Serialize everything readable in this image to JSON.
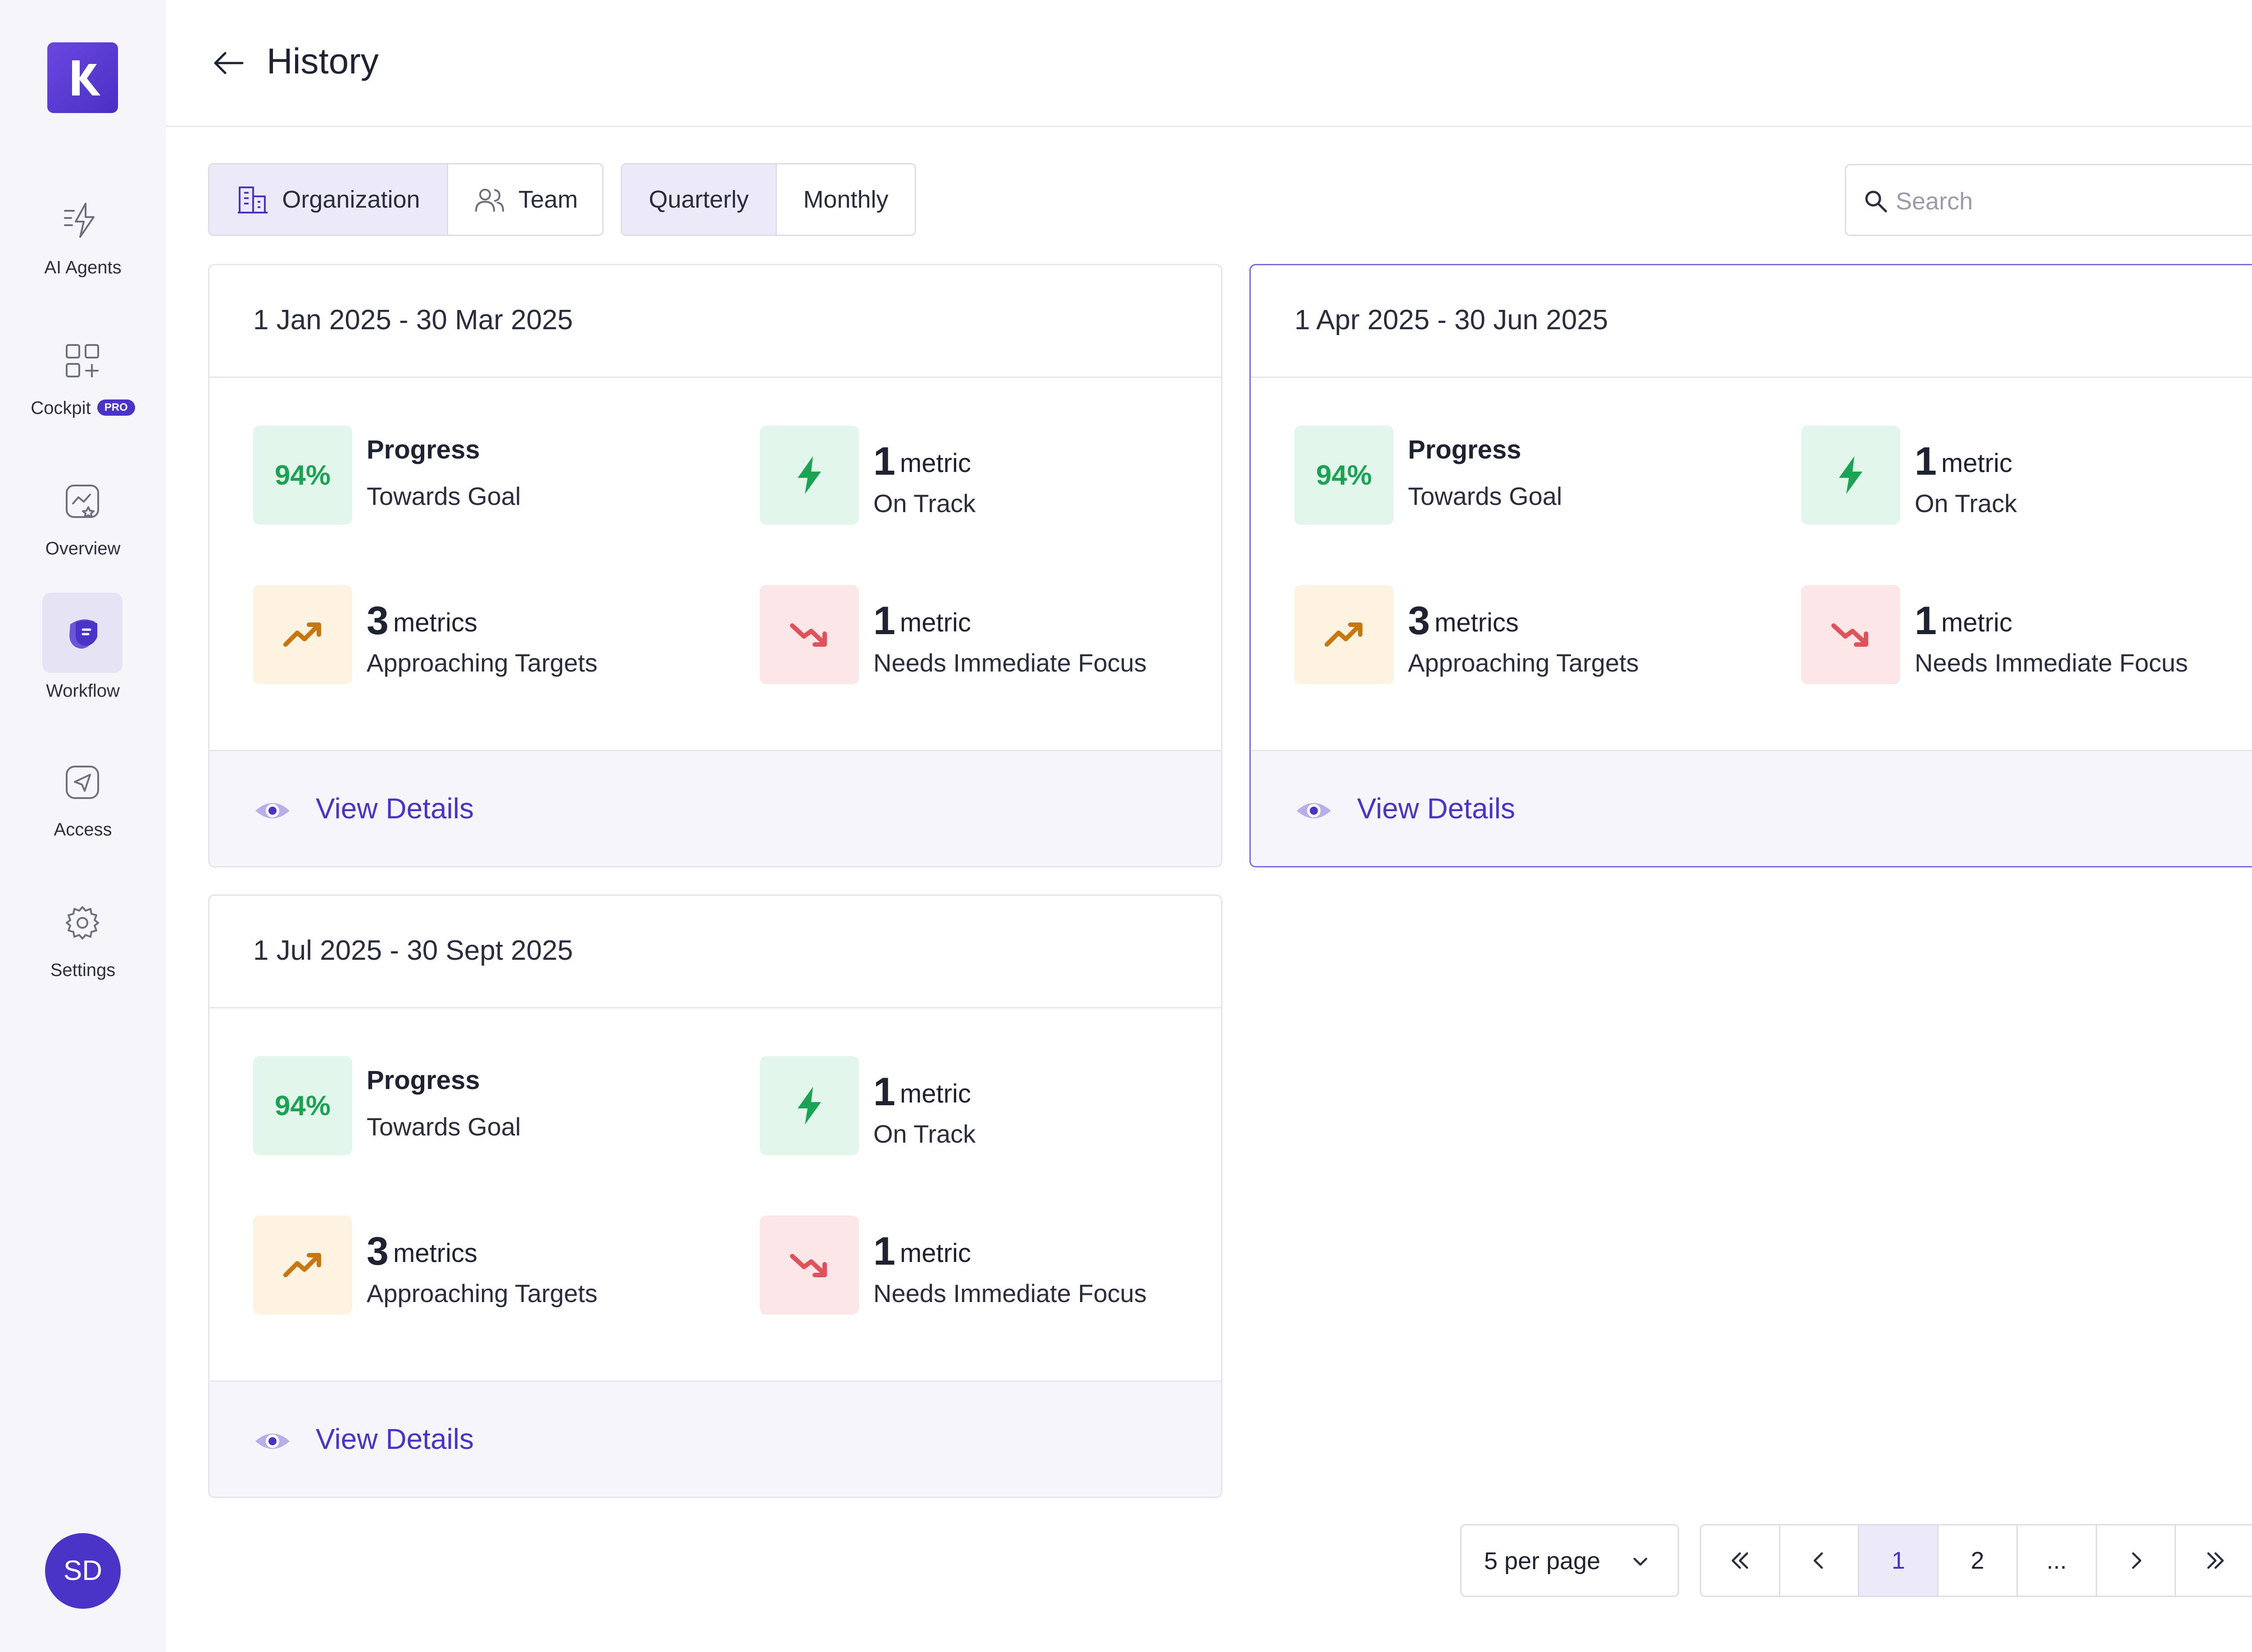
{
  "app": {
    "logo_name": "app-logo",
    "avatar_initials": "SD"
  },
  "sidebar": {
    "items": [
      {
        "label": "AI Agents",
        "icon": "ai-agents-icon"
      },
      {
        "label": "Cockpit",
        "icon": "cockpit-icon",
        "badge": "PRO"
      },
      {
        "label": "Overview",
        "icon": "overview-icon"
      },
      {
        "label": "Workflow",
        "icon": "workflow-icon",
        "active": true
      },
      {
        "label": "Access",
        "icon": "access-icon"
      },
      {
        "label": "Settings",
        "icon": "gear-icon"
      }
    ]
  },
  "header": {
    "title": "History"
  },
  "filters": {
    "scope": [
      {
        "label": "Organization",
        "active": true
      },
      {
        "label": "Team",
        "active": false
      }
    ],
    "period": [
      {
        "label": "Quarterly",
        "active": true
      },
      {
        "label": "Monthly",
        "active": false
      }
    ]
  },
  "search": {
    "placeholder": "Search",
    "value": ""
  },
  "cards": [
    {
      "title": "1 Jan 2025 - 30 Mar 2025",
      "progress_value": "94%",
      "progress_label": "Progress",
      "progress_sub": "Towards Goal",
      "on_track_count": "1",
      "on_track_unit": "metric",
      "on_track_label": "On Track",
      "approaching_count": "3",
      "approaching_unit": "metrics",
      "approaching_label": "Approaching Targets",
      "focus_count": "1",
      "focus_unit": "metric",
      "focus_label": "Needs Immediate Focus",
      "link": "View Details"
    },
    {
      "title": "1 Apr 2025 - 30 Jun 2025",
      "progress_value": "94%",
      "progress_label": "Progress",
      "progress_sub": "Towards Goal",
      "on_track_count": "1",
      "on_track_unit": "metric",
      "on_track_label": "On Track",
      "approaching_count": "3",
      "approaching_unit": "metrics",
      "approaching_label": "Approaching Targets",
      "focus_count": "1",
      "focus_unit": "metric",
      "focus_label": "Needs Immediate Focus",
      "link": "View Details"
    },
    {
      "title": "1 Jul 2025 - 30 Sept 2025",
      "progress_value": "94%",
      "progress_label": "Progress",
      "progress_sub": "Towards Goal",
      "on_track_count": "1",
      "on_track_unit": "metric",
      "on_track_label": "On Track",
      "approaching_count": "3",
      "approaching_unit": "metrics",
      "approaching_label": "Approaching Targets",
      "focus_count": "1",
      "focus_unit": "metric",
      "focus_label": "Needs Immediate Focus",
      "link": "View Details"
    }
  ],
  "pagination": {
    "per_page": "5 per page",
    "pages": [
      "1",
      "2",
      "..."
    ],
    "current": "1"
  },
  "colors": {
    "accent": "#4a34c7",
    "success": "#1aa352",
    "warning": "#c8760e",
    "danger": "#e0525a"
  }
}
